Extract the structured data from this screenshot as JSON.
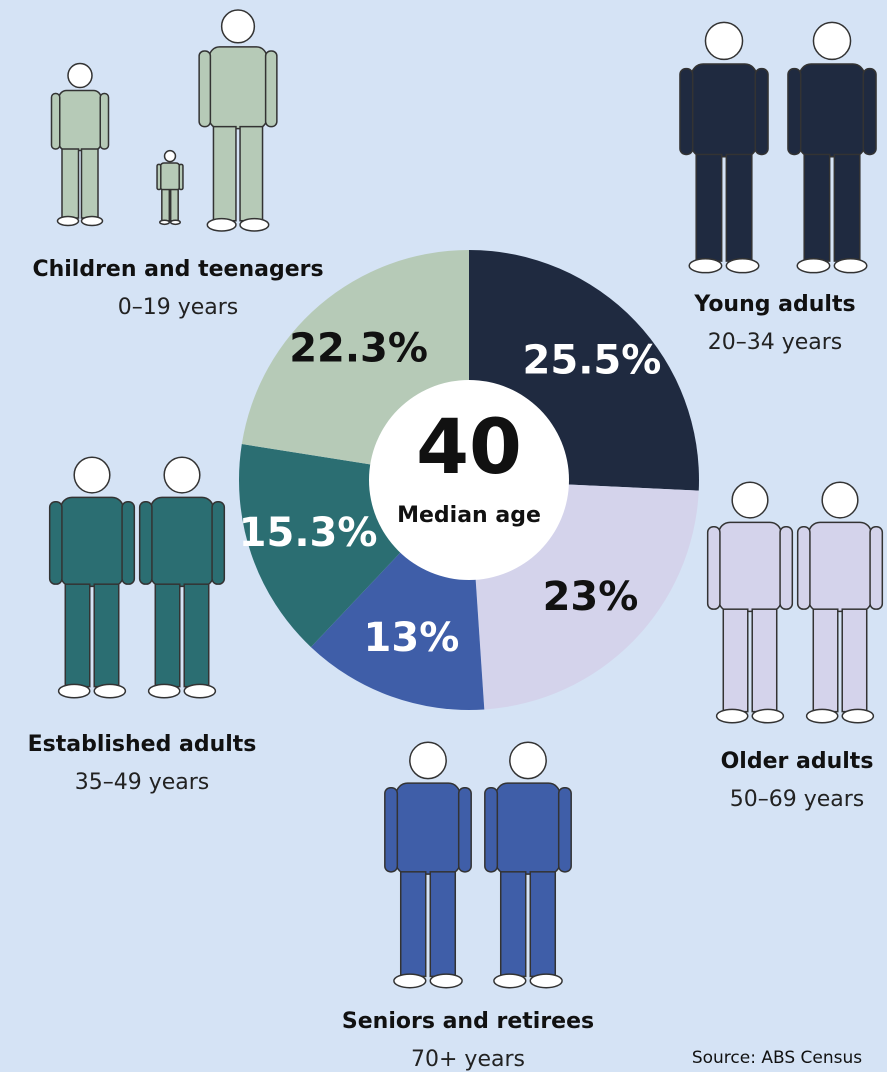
{
  "chart_data": {
    "type": "pie",
    "categories": [
      "Young adults",
      "Older adults",
      "Seniors and retirees",
      "Established adults",
      "Children and teenagers"
    ],
    "category_ranges": [
      "20–34 years",
      "50–69 years",
      "70+ years",
      "35–49 years",
      "0–19 years"
    ],
    "values": [
      25.5,
      23,
      13,
      15.3,
      22.3
    ],
    "value_labels": [
      "25.5%",
      "23%",
      "13%",
      "15.3%",
      "22.3%"
    ],
    "colors": [
      "#1f2a40",
      "#d4d3eb",
      "#3f5ea8",
      "#2b6e72",
      "#b6cab7"
    ],
    "center_value": 40,
    "center_label": "Median age",
    "source": "Source: ABS Census"
  }
}
